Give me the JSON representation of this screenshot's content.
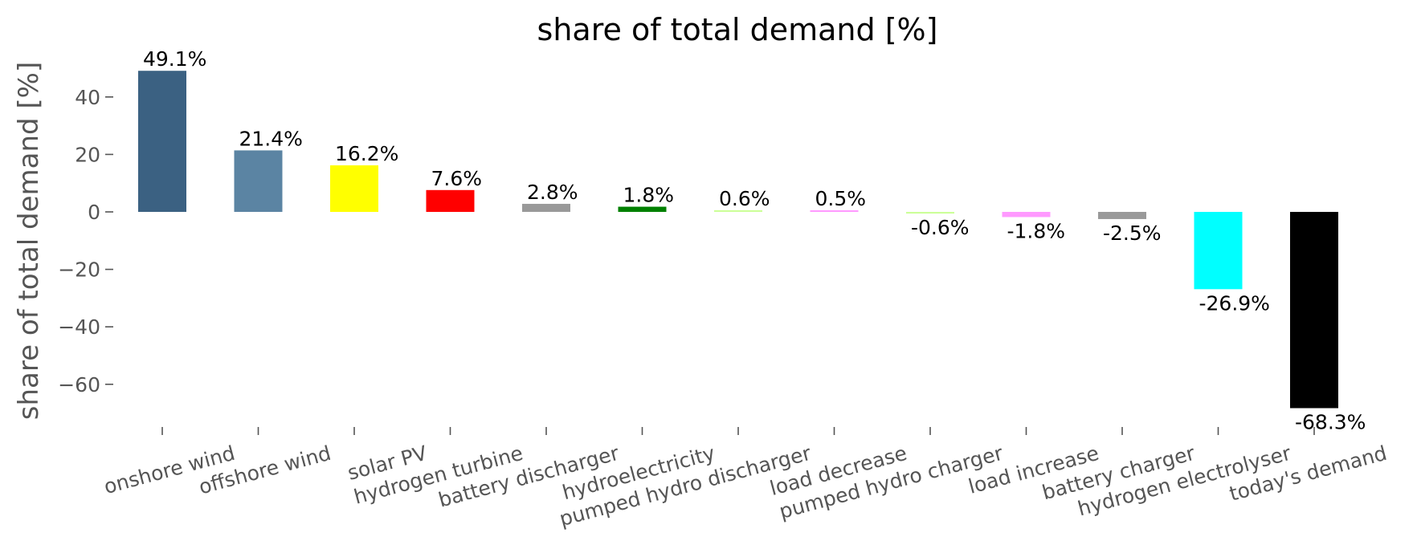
{
  "chart_data": {
    "type": "bar",
    "title": "share of total demand [%]",
    "ylabel": "share of total demand [%]",
    "xlabel": "",
    "ylim": [
      -75,
      53
    ],
    "yticks": [
      40,
      20,
      0,
      -20,
      -40,
      -60
    ],
    "ytick_labels": [
      "40",
      "20",
      "0",
      "−20",
      "−40",
      "−60"
    ],
    "grid": false,
    "categories": [
      "onshore wind",
      "offshore wind",
      "solar PV",
      "hydrogen turbine",
      "battery discharger",
      "hydroelectricity",
      "pumped hydro discharger",
      "load decrease",
      "pumped hydro charger",
      "load increase",
      "battery charger",
      "hydrogen electrolyser",
      "today's demand"
    ],
    "values": [
      49.1,
      21.4,
      16.2,
      7.6,
      2.8,
      1.8,
      0.6,
      0.5,
      -0.6,
      -1.8,
      -2.5,
      -26.9,
      -68.3
    ],
    "value_labels": [
      "49.1%",
      "21.4%",
      "16.2%",
      "7.6%",
      "2.8%",
      "1.8%",
      "0.6%",
      "0.5%",
      "-0.6%",
      "-1.8%",
      "-2.5%",
      "-26.9%",
      "-68.3%"
    ],
    "colors": [
      "#3b6182",
      "#5b84a3",
      "#ffff00",
      "#ff0000",
      "#999999",
      "#008000",
      "#ccff99",
      "#ff99ff",
      "#ccff99",
      "#ff99ff",
      "#999999",
      "#00ffff",
      "#000000"
    ]
  }
}
